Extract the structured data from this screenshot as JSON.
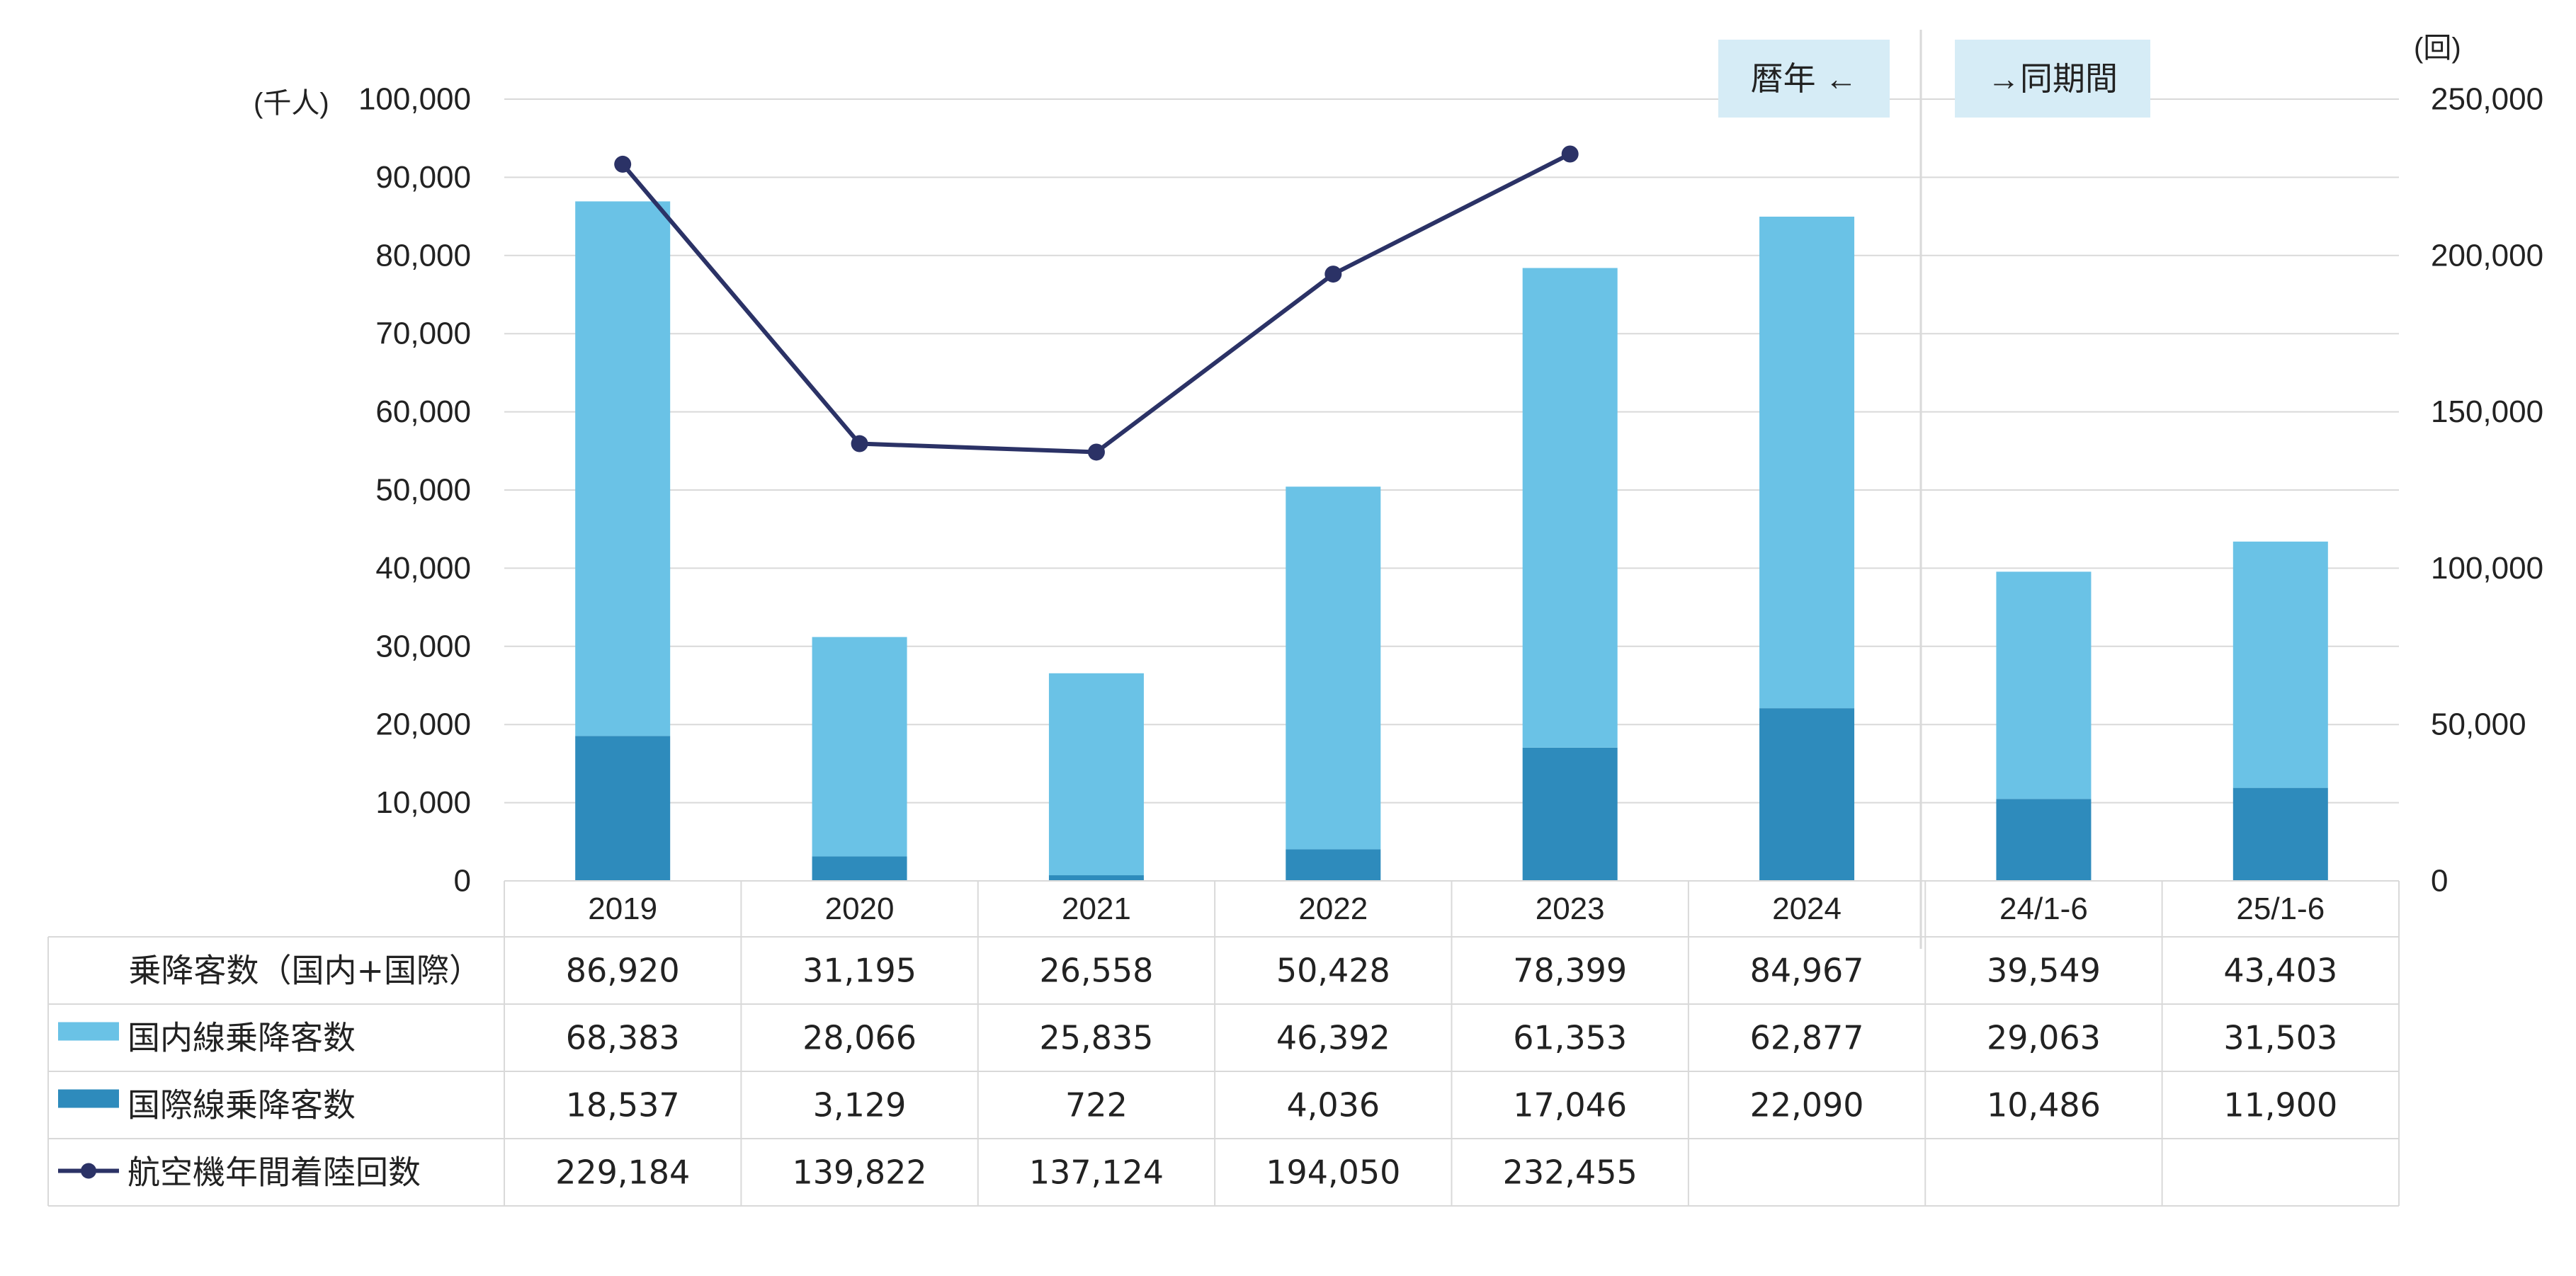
{
  "chart_data": {
    "type": "bar",
    "stacked": true,
    "categories": [
      "2019",
      "2020",
      "2021",
      "2022",
      "2023",
      "2024",
      "24/1-6",
      "25/1-6"
    ],
    "y_left": {
      "unit": "(千人)",
      "ylim": [
        0,
        100000
      ],
      "ticks": [
        "0",
        "10,000",
        "20,000",
        "30,000",
        "40,000",
        "50,000",
        "60,000",
        "70,000",
        "80,000",
        "90,000",
        "100,000"
      ]
    },
    "y_right": {
      "unit": "(回)",
      "ylim": [
        0,
        250000
      ],
      "ticks": [
        "0",
        "50,000",
        "100,000",
        "150,000",
        "200,000",
        "250,000"
      ]
    },
    "series": [
      {
        "name": "国際線乗降客数",
        "kind": "bar",
        "color": "#2e8bbc",
        "values": [
          18537,
          3129,
          722,
          4036,
          17046,
          22090,
          10486,
          11900
        ],
        "labels": [
          "18,537",
          "3,129",
          "722",
          "4,036",
          "17,046",
          "22,090",
          "10,486",
          "11,900"
        ]
      },
      {
        "name": "国内線乗降客数",
        "kind": "bar",
        "color": "#6ac2e6",
        "values": [
          68383,
          28066,
          25835,
          46392,
          61353,
          62877,
          29063,
          31503
        ],
        "labels": [
          "68,383",
          "28,066",
          "25,835",
          "46,392",
          "61,353",
          "62,877",
          "29,063",
          "31,503"
        ]
      },
      {
        "name": "航空機年間着陸回数",
        "kind": "line",
        "axis": "right",
        "color": "#2b3266",
        "values": [
          229184,
          139822,
          137124,
          194050,
          232455,
          null,
          null,
          null
        ],
        "labels": [
          "229,184",
          "139,822",
          "137,124",
          "194,050",
          "232,455",
          "",
          "",
          ""
        ]
      }
    ],
    "total_row": {
      "name": "乗降客数（国内+国際）",
      "labels": [
        "86,920",
        "31,195",
        "26,558",
        "50,428",
        "78,399",
        "84,967",
        "39,549",
        "43,403"
      ]
    },
    "annotations": {
      "calendar_year": "暦年 ←",
      "same_period": "→同期間"
    },
    "colors": {
      "axis_text": "#222222",
      "grid": "#d9d9d9",
      "annotation_bg": "#d6ecf6",
      "table_border": "#d9d9d9"
    },
    "legend": "data-table"
  }
}
